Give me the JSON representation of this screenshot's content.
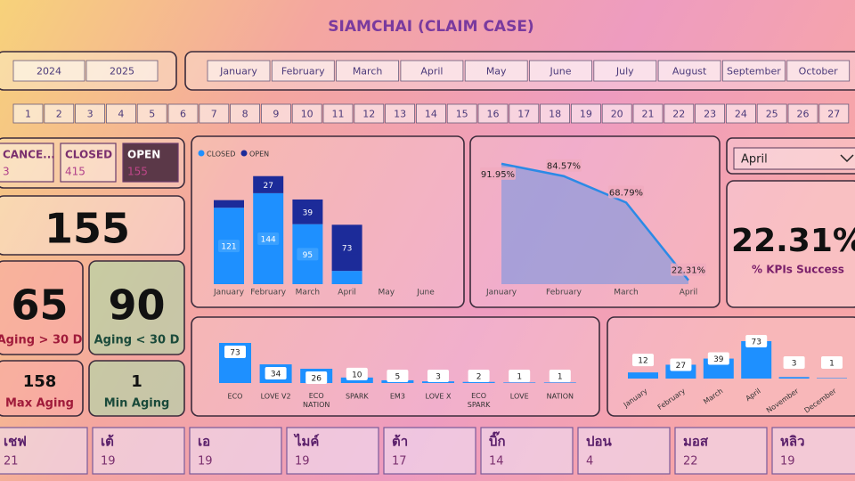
{
  "header": {
    "title": "SIAMCHAI (CLAIM CASE)"
  },
  "years": [
    "2024",
    "2025"
  ],
  "months": [
    "January",
    "February",
    "March",
    "April",
    "May",
    "June",
    "July",
    "August",
    "September",
    "October"
  ],
  "days": [
    1,
    2,
    3,
    4,
    5,
    6,
    7,
    8,
    9,
    10,
    11,
    12,
    13,
    14,
    15,
    16,
    17,
    18,
    19,
    20,
    21,
    22,
    23,
    24,
    25,
    26,
    27
  ],
  "status": [
    {
      "label": "CANCE...",
      "value": 3
    },
    {
      "label": "CLOSED",
      "value": 415
    },
    {
      "label": "OPEN",
      "value": 155
    }
  ],
  "total": 155,
  "aging": [
    {
      "label": "Aging > 30 D",
      "value": 65
    },
    {
      "label": "Aging < 30 D",
      "value": 90
    },
    {
      "label": "Max Aging",
      "value": 158
    },
    {
      "label": "Min Aging",
      "value": 1
    }
  ],
  "month_filter": "April",
  "kpi": {
    "value": "22.31%",
    "label": "% KPIs Success"
  },
  "people": [
    {
      "name": "เชฟ",
      "value": 21
    },
    {
      "name": "เต้",
      "value": 19
    },
    {
      "name": "เอ",
      "value": 19
    },
    {
      "name": "ไมค์",
      "value": 19
    },
    {
      "name": "ต้า",
      "value": 17
    },
    {
      "name": "บิ๊ก",
      "value": 14
    },
    {
      "name": "ปอน",
      "value": 4
    },
    {
      "name": "มอส",
      "value": 22
    },
    {
      "name": "หลิว",
      "value": 19
    }
  ],
  "chart_data": [
    {
      "type": "stacked-bar",
      "categories": [
        "January",
        "February",
        "March",
        "April",
        "May",
        "June"
      ],
      "series": [
        {
          "name": "CLOSED",
          "color": "#1e90ff",
          "values": [
            121,
            144,
            95,
            21,
            null,
            null
          ],
          "value_labels": [
            "121",
            "144",
            "95",
            null,
            null,
            null
          ]
        },
        {
          "name": "OPEN",
          "color": "#1c2b99",
          "values": [
            12,
            27,
            39,
            73,
            null,
            null
          ],
          "value_labels": [
            null,
            "27",
            "39",
            "73",
            null,
            null
          ]
        }
      ],
      "ylim": [
        0,
        196
      ]
    },
    {
      "type": "area",
      "categories": [
        "January",
        "February",
        "March",
        "April"
      ],
      "values": [
        91.95,
        84.57,
        68.79,
        22.31
      ],
      "value_labels": [
        "91.95%",
        "84.57%",
        "68.79%",
        "22.31%"
      ],
      "color": "#2b8ae6",
      "ylim": [
        20,
        102
      ]
    },
    {
      "type": "bar",
      "categories": [
        "ECO",
        "LOVE V2",
        "ECO NATION",
        "SPARK",
        "EM3",
        "LOVE X",
        "ECO SPARK",
        "LOVE",
        "NATION"
      ],
      "values": [
        73,
        34,
        26,
        10,
        5,
        3,
        2,
        1,
        1
      ],
      "color": "#1e90ff",
      "ylim": [
        0,
        80
      ]
    },
    {
      "type": "bar",
      "categories": [
        "January",
        "February",
        "March",
        "April",
        "November",
        "December"
      ],
      "values": [
        12,
        27,
        39,
        73,
        3,
        1
      ],
      "color": "#1e90ff",
      "ylim": [
        0,
        78
      ]
    }
  ]
}
